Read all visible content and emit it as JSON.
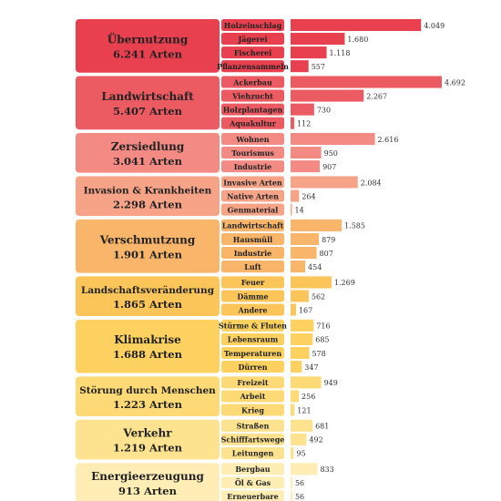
{
  "chart_data": {
    "type": "bar",
    "orientation": "horizontal",
    "title": "",
    "xlabel": "",
    "ylabel": "",
    "max_value": 4692,
    "groups": [
      {
        "name": "Übernutzung",
        "total": "6.241 Arten",
        "color": "#e8404f",
        "items": [
          {
            "label": "Holzeinschlag",
            "value": 4049,
            "value_label": "4.049"
          },
          {
            "label": "Jägerei",
            "value": 1680,
            "value_label": "1.680"
          },
          {
            "label": "Fischerei",
            "value": 1118,
            "value_label": "1.118"
          },
          {
            "label": "Pflanzensammeln",
            "value": 557,
            "value_label": "557"
          }
        ]
      },
      {
        "name": "Landwirtschaft",
        "total": "5.407 Arten",
        "color": "#ec5a62",
        "items": [
          {
            "label": "Ackerbau",
            "value": 4692,
            "value_label": "4.692"
          },
          {
            "label": "Viehzucht",
            "value": 2267,
            "value_label": "2.267"
          },
          {
            "label": "Holzplantagen",
            "value": 730,
            "value_label": "730"
          },
          {
            "label": "Aquakultur",
            "value": 112,
            "value_label": "112"
          }
        ]
      },
      {
        "name": "Zersiedlung",
        "total": "3.041 Arten",
        "color": "#f38a84",
        "items": [
          {
            "label": "Wohnen",
            "value": 2616,
            "value_label": "2.616"
          },
          {
            "label": "Tourismus",
            "value": 950,
            "value_label": "950"
          },
          {
            "label": "Industrie",
            "value": 907,
            "value_label": "907"
          }
        ]
      },
      {
        "name": "Invasion & Krankheiten",
        "total": "2.298 Arten",
        "color": "#f7a388",
        "items": [
          {
            "label": "Invasive Arten",
            "value": 2084,
            "value_label": "2.084"
          },
          {
            "label": "Native Arten",
            "value": 264,
            "value_label": "264"
          },
          {
            "label": "Genmaterial",
            "value": 14,
            "value_label": "14"
          }
        ]
      },
      {
        "name": "Verschmutzung",
        "total": "1.901 Arten",
        "color": "#f9b56a",
        "items": [
          {
            "label": "Landwirtschaft",
            "value": 1585,
            "value_label": "1.585"
          },
          {
            "label": "Hausmüll",
            "value": 879,
            "value_label": "879"
          },
          {
            "label": "Industrie",
            "value": 807,
            "value_label": "807"
          },
          {
            "label": "Luft",
            "value": 454,
            "value_label": "454"
          }
        ]
      },
      {
        "name": "Landschaftsveränderung",
        "total": "1.865 Arten",
        "color": "#fbc559",
        "items": [
          {
            "label": "Feuer",
            "value": 1269,
            "value_label": "1.269"
          },
          {
            "label": "Dämme",
            "value": 562,
            "value_label": "562"
          },
          {
            "label": "Andere",
            "value": 167,
            "value_label": "167"
          }
        ]
      },
      {
        "name": "Klimakrise",
        "total": "1.688 Arten",
        "color": "#fcd160",
        "items": [
          {
            "label": "Stürme & Fluten",
            "value": 716,
            "value_label": "716"
          },
          {
            "label": "Lebensraum",
            "value": 685,
            "value_label": "685"
          },
          {
            "label": "Temperaturen",
            "value": 578,
            "value_label": "578"
          },
          {
            "label": "Dürren",
            "value": 347,
            "value_label": "347"
          }
        ]
      },
      {
        "name": "Störung durch Menschen",
        "total": "1.223 Arten",
        "color": "#fdda76",
        "items": [
          {
            "label": "Freizeit",
            "value": 949,
            "value_label": "949"
          },
          {
            "label": "Arbeit",
            "value": 256,
            "value_label": "256"
          },
          {
            "label": "Krieg",
            "value": 121,
            "value_label": "121"
          }
        ]
      },
      {
        "name": "Verkehr",
        "total": "1.219 Arten",
        "color": "#fde38f",
        "items": [
          {
            "label": "Straßen",
            "value": 681,
            "value_label": "681"
          },
          {
            "label": "Schifffartswege",
            "value": 492,
            "value_label": "492"
          },
          {
            "label": "Leitungen",
            "value": 95,
            "value_label": "95"
          }
        ]
      },
      {
        "name": "Energieerzeugung",
        "total": "913 Arten",
        "color": "#feeeb5",
        "items": [
          {
            "label": "Bergbau",
            "value": 833,
            "value_label": "833"
          },
          {
            "label": "Öl & Gas",
            "value": 56,
            "value_label": "56"
          },
          {
            "label": "Erneuerbare",
            "value": 56,
            "value_label": "56"
          }
        ]
      }
    ]
  }
}
